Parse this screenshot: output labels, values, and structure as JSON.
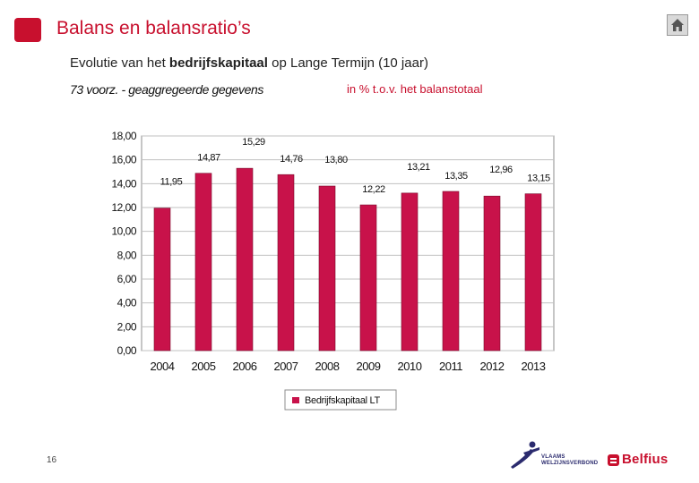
{
  "slide": {
    "title": "Balans en balansratio’s",
    "subtitle_pre": "Evolutie van het ",
    "subtitle_bold": "bedrijfskapitaal",
    "subtitle_post": " op Lange Termijn (10 jaar)",
    "note_left": "73  voorz. - geaggregeerde gegevens",
    "note_right": "in % t.o.v. het balanstotaal",
    "page_number": "16",
    "logo_vv_lines": [
      "VLAAMS",
      "WELZIJNSVERBOND"
    ],
    "logo_belfius": "Belfius"
  },
  "colors": {
    "bar": "#c8124a",
    "title": "#c8102e",
    "grid": "#c0c0c0"
  },
  "icons": {
    "home": "home-icon"
  },
  "chart_data": {
    "type": "bar",
    "categories": [
      "2004",
      "2005",
      "2006",
      "2007",
      "2008",
      "2009",
      "2010",
      "2011",
      "2012",
      "2013"
    ],
    "series": [
      {
        "name": "Bedrijfskapitaal LT",
        "values": [
          11.95,
          14.87,
          15.29,
          14.76,
          13.8,
          12.22,
          13.21,
          13.35,
          12.96,
          13.15
        ]
      }
    ],
    "data_labels": [
      "11,95",
      "14,87",
      "15,29",
      "14,76",
      "13,80",
      "12,22",
      "13,21",
      "13,35",
      "12,96",
      "13,15"
    ],
    "yticks": [
      "0,00",
      "2,00",
      "4,00",
      "6,00",
      "8,00",
      "10,00",
      "12,00",
      "14,00",
      "16,00",
      "18,00"
    ],
    "ylim": [
      0,
      18
    ],
    "grid": true,
    "legend": "bottom"
  }
}
